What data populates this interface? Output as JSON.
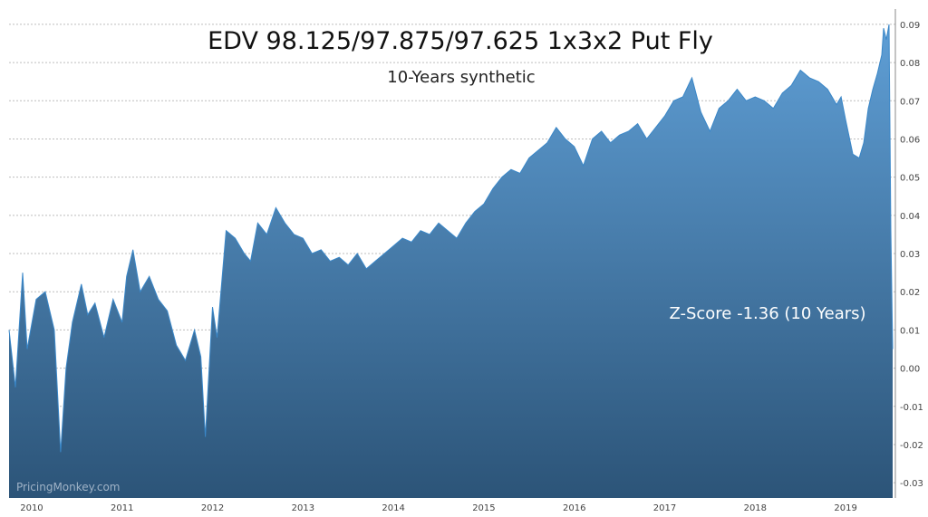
{
  "chart_data": {
    "type": "area",
    "title": "EDV 98.125/97.875/97.625 1x3x2 Put Fly",
    "subtitle": "10-Years synthetic",
    "annotation": "Z-Score -1.36 (10 Years)",
    "watermark": "PricingMonkey.com",
    "xlabel": "",
    "ylabel": "",
    "x_ticks": [
      "2010",
      "2011",
      "2012",
      "2013",
      "2014",
      "2015",
      "2016",
      "2017",
      "2018",
      "2019"
    ],
    "y_ticks": [
      "-0.03",
      "-0.02",
      "-0.01",
      "0.00",
      "0.01",
      "0.02",
      "0.03",
      "0.04",
      "0.05",
      "0.06",
      "0.07",
      "0.08",
      "0.09"
    ],
    "ylim": [
      -0.034,
      0.094
    ],
    "xlim": [
      2009.75,
      2019.55
    ],
    "grid": true,
    "legend": "none",
    "colors": {
      "area_top": "#5f9fd6",
      "area_bottom": "#2c5478",
      "line": "#3a87c8",
      "grid": "#bdbdbd"
    },
    "series": [
      {
        "x": [
          2009.75,
          2009.82,
          2009.9,
          2009.95,
          2010.05,
          2010.15,
          2010.25,
          2010.32,
          2010.38,
          2010.45,
          2010.55,
          2010.62,
          2010.7,
          2010.8,
          2010.9,
          2011.0,
          2011.05,
          2011.12,
          2011.2,
          2011.3,
          2011.4,
          2011.5,
          2011.6,
          2011.7,
          2011.8,
          2011.87,
          2011.92,
          2012.0,
          2012.05,
          2012.15,
          2012.25,
          2012.35,
          2012.42,
          2012.5,
          2012.6,
          2012.7,
          2012.8,
          2012.9,
          2013.0,
          2013.1,
          2013.2,
          2013.3,
          2013.4,
          2013.5,
          2013.6,
          2013.7,
          2013.8,
          2013.9,
          2014.0,
          2014.1,
          2014.2,
          2014.3,
          2014.4,
          2014.5,
          2014.6,
          2014.7,
          2014.8,
          2014.9,
          2015.0,
          2015.1,
          2015.2,
          2015.3,
          2015.4,
          2015.5,
          2015.6,
          2015.7,
          2015.8,
          2015.9,
          2016.0,
          2016.1,
          2016.2,
          2016.3,
          2016.4,
          2016.5,
          2016.6,
          2016.7,
          2016.8,
          2016.9,
          2017.0,
          2017.1,
          2017.2,
          2017.3,
          2017.4,
          2017.5,
          2017.6,
          2017.7,
          2017.8,
          2017.9,
          2018.0,
          2018.1,
          2018.2,
          2018.3,
          2018.4,
          2018.5,
          2018.6,
          2018.7,
          2018.8,
          2018.9,
          2018.95,
          2019.0,
          2019.08,
          2019.15,
          2019.2,
          2019.25,
          2019.3,
          2019.35,
          2019.4,
          2019.42,
          2019.45,
          2019.48,
          2019.5,
          2019.52
        ],
        "y": [
          0.01,
          -0.005,
          0.025,
          0.005,
          0.018,
          0.02,
          0.01,
          -0.022,
          0.0,
          0.012,
          0.022,
          0.014,
          0.017,
          0.008,
          0.018,
          0.012,
          0.024,
          0.031,
          0.02,
          0.024,
          0.018,
          0.015,
          0.006,
          0.002,
          0.01,
          0.003,
          -0.018,
          0.016,
          0.008,
          0.036,
          0.034,
          0.03,
          0.028,
          0.038,
          0.035,
          0.042,
          0.038,
          0.035,
          0.034,
          0.03,
          0.031,
          0.028,
          0.029,
          0.027,
          0.03,
          0.026,
          0.028,
          0.03,
          0.032,
          0.034,
          0.033,
          0.036,
          0.035,
          0.038,
          0.036,
          0.034,
          0.038,
          0.041,
          0.043,
          0.047,
          0.05,
          0.052,
          0.051,
          0.055,
          0.057,
          0.059,
          0.063,
          0.06,
          0.058,
          0.053,
          0.06,
          0.062,
          0.059,
          0.061,
          0.062,
          0.064,
          0.06,
          0.063,
          0.066,
          0.07,
          0.071,
          0.076,
          0.067,
          0.062,
          0.068,
          0.07,
          0.073,
          0.07,
          0.071,
          0.07,
          0.068,
          0.072,
          0.074,
          0.078,
          0.076,
          0.075,
          0.073,
          0.069,
          0.071,
          0.065,
          0.056,
          0.055,
          0.059,
          0.068,
          0.073,
          0.077,
          0.082,
          0.089,
          0.086,
          0.09,
          0.036,
          0.005
        ]
      }
    ]
  }
}
